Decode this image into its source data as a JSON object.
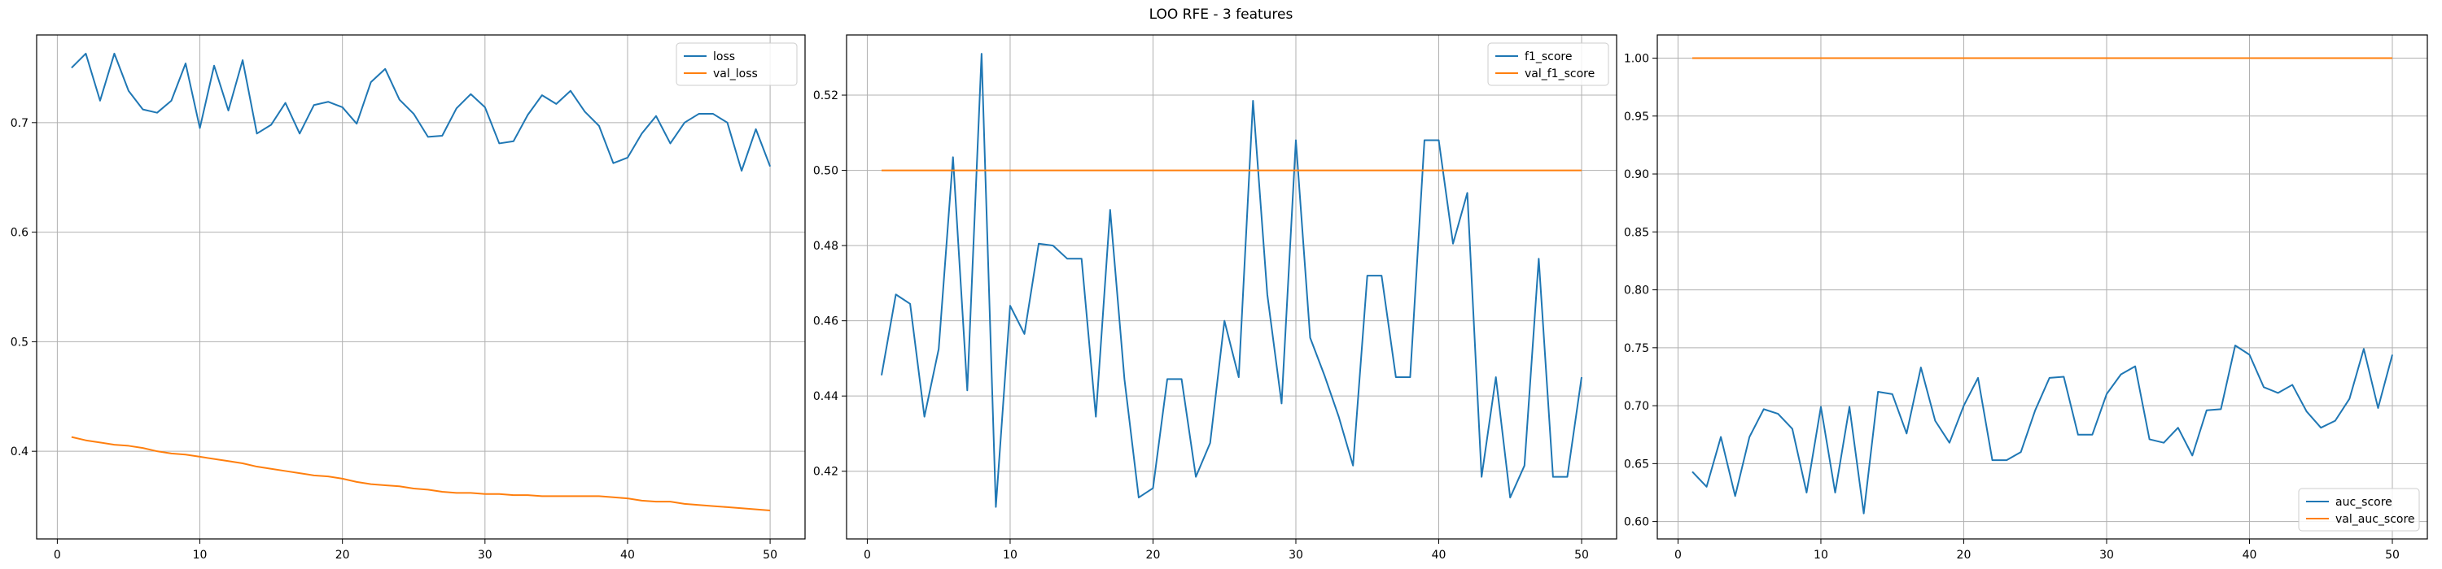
{
  "figure": {
    "title": "LOO RFE - 3 features"
  },
  "chart_data": [
    {
      "type": "line",
      "title": "",
      "xlabel": "",
      "ylabel": "",
      "xlim": [
        -1.45,
        52.45
      ],
      "ylim": [
        0.32,
        0.78
      ],
      "xticks": [
        0,
        10,
        20,
        30,
        40,
        50
      ],
      "yticks": [
        0.4,
        0.5,
        0.6,
        0.7
      ],
      "ytick_labels": [
        "0.4",
        "0.5",
        "0.6",
        "0.7"
      ],
      "grid": true,
      "legend": "top-right",
      "x": [
        1,
        2,
        3,
        4,
        5,
        6,
        7,
        8,
        9,
        10,
        11,
        12,
        13,
        14,
        15,
        16,
        17,
        18,
        19,
        20,
        21,
        22,
        23,
        24,
        25,
        26,
        27,
        28,
        29,
        30,
        31,
        32,
        33,
        34,
        35,
        36,
        37,
        38,
        39,
        40,
        41,
        42,
        43,
        44,
        45,
        46,
        47,
        48,
        49,
        50
      ],
      "series": [
        {
          "name": "loss",
          "color": "#1f77b4",
          "values": [
            0.75,
            0.763,
            0.72,
            0.763,
            0.729,
            0.712,
            0.709,
            0.72,
            0.754,
            0.695,
            0.752,
            0.711,
            0.757,
            0.69,
            0.698,
            0.718,
            0.69,
            0.716,
            0.719,
            0.714,
            0.699,
            0.737,
            0.749,
            0.721,
            0.708,
            0.687,
            0.688,
            0.713,
            0.726,
            0.714,
            0.681,
            0.683,
            0.707,
            0.725,
            0.717,
            0.729,
            0.71,
            0.697,
            0.663,
            0.668,
            0.69,
            0.706,
            0.681,
            0.7,
            0.708,
            0.708,
            0.7,
            0.656,
            0.694,
            0.66
          ]
        },
        {
          "name": "val_loss",
          "color": "#ff7f0e",
          "values": [
            0.413,
            0.41,
            0.408,
            0.406,
            0.405,
            0.403,
            0.4,
            0.398,
            0.397,
            0.395,
            0.393,
            0.391,
            0.389,
            0.386,
            0.384,
            0.382,
            0.38,
            0.378,
            0.377,
            0.375,
            0.372,
            0.37,
            0.369,
            0.368,
            0.366,
            0.365,
            0.363,
            0.362,
            0.362,
            0.361,
            0.361,
            0.36,
            0.36,
            0.359,
            0.359,
            0.359,
            0.359,
            0.359,
            0.358,
            0.357,
            0.355,
            0.354,
            0.354,
            0.352,
            0.351,
            0.35,
            0.349,
            0.348,
            0.347,
            0.346
          ]
        }
      ]
    },
    {
      "type": "line",
      "title": "",
      "xlabel": "",
      "ylabel": "",
      "xlim": [
        -1.45,
        52.45
      ],
      "ylim": [
        0.402,
        0.536
      ],
      "xticks": [
        0,
        10,
        20,
        30,
        40,
        50
      ],
      "yticks": [
        0.42,
        0.44,
        0.46,
        0.48,
        0.5,
        0.52
      ],
      "ytick_labels": [
        "0.42",
        "0.44",
        "0.46",
        "0.48",
        "0.50",
        "0.52"
      ],
      "grid": true,
      "legend": "top-right",
      "x": [
        1,
        2,
        3,
        4,
        5,
        6,
        7,
        8,
        9,
        10,
        11,
        12,
        13,
        14,
        15,
        16,
        17,
        18,
        19,
        20,
        21,
        22,
        23,
        24,
        25,
        26,
        27,
        28,
        29,
        30,
        31,
        32,
        33,
        34,
        35,
        36,
        37,
        38,
        39,
        40,
        41,
        42,
        43,
        44,
        45,
        46,
        47,
        48,
        49,
        50
      ],
      "series": [
        {
          "name": "f1_score",
          "color": "#1f77b4",
          "values": [
            0.4455,
            0.467,
            0.4645,
            0.4345,
            0.4525,
            0.5035,
            0.4415,
            0.531,
            0.4105,
            0.464,
            0.4565,
            0.4805,
            0.48,
            0.4765,
            0.4765,
            0.4345,
            0.4895,
            0.4445,
            0.413,
            0.4155,
            0.4445,
            0.4445,
            0.4185,
            0.4275,
            0.46,
            0.445,
            0.5185,
            0.467,
            0.438,
            0.508,
            0.4555,
            0.4455,
            0.4345,
            0.4215,
            0.472,
            0.472,
            0.445,
            0.445,
            0.508,
            0.508,
            0.4805,
            0.494,
            0.4185,
            0.445,
            0.413,
            0.4215,
            0.4765,
            0.4185,
            0.4185,
            0.445
          ]
        },
        {
          "name": "val_f1_score",
          "color": "#ff7f0e",
          "values": [
            0.5,
            0.5,
            0.5,
            0.5,
            0.5,
            0.5,
            0.5,
            0.5,
            0.5,
            0.5,
            0.5,
            0.5,
            0.5,
            0.5,
            0.5,
            0.5,
            0.5,
            0.5,
            0.5,
            0.5,
            0.5,
            0.5,
            0.5,
            0.5,
            0.5,
            0.5,
            0.5,
            0.5,
            0.5,
            0.5,
            0.5,
            0.5,
            0.5,
            0.5,
            0.5,
            0.5,
            0.5,
            0.5,
            0.5,
            0.5,
            0.5,
            0.5,
            0.5,
            0.5,
            0.5,
            0.5,
            0.5,
            0.5,
            0.5,
            0.5
          ]
        }
      ]
    },
    {
      "type": "line",
      "title": "",
      "xlabel": "",
      "ylabel": "",
      "xlim": [
        -1.45,
        52.45
      ],
      "ylim": [
        0.585,
        1.02
      ],
      "xticks": [
        0,
        10,
        20,
        30,
        40,
        50
      ],
      "yticks": [
        0.6,
        0.65,
        0.7,
        0.75,
        0.8,
        0.85,
        0.9,
        0.95,
        1.0
      ],
      "ytick_labels": [
        "0.60",
        "0.65",
        "0.70",
        "0.75",
        "0.80",
        "0.85",
        "0.90",
        "0.95",
        "1.00"
      ],
      "grid": true,
      "legend": "bottom-right",
      "x": [
        1,
        2,
        3,
        4,
        5,
        6,
        7,
        8,
        9,
        10,
        11,
        12,
        13,
        14,
        15,
        16,
        17,
        18,
        19,
        20,
        21,
        22,
        23,
        24,
        25,
        26,
        27,
        28,
        29,
        30,
        31,
        32,
        33,
        34,
        35,
        36,
        37,
        38,
        39,
        40,
        41,
        42,
        43,
        44,
        45,
        46,
        47,
        48,
        49,
        50
      ],
      "series": [
        {
          "name": "auc_score",
          "color": "#1f77b4",
          "values": [
            0.643,
            0.63,
            0.673,
            0.622,
            0.673,
            0.697,
            0.693,
            0.68,
            0.625,
            0.699,
            0.625,
            0.699,
            0.607,
            0.712,
            0.71,
            0.676,
            0.733,
            0.687,
            0.668,
            0.7,
            0.724,
            0.653,
            0.653,
            0.66,
            0.696,
            0.724,
            0.725,
            0.675,
            0.675,
            0.71,
            0.727,
            0.734,
            0.671,
            0.668,
            0.681,
            0.657,
            0.696,
            0.697,
            0.752,
            0.744,
            0.716,
            0.711,
            0.718,
            0.695,
            0.681,
            0.687,
            0.706,
            0.749,
            0.698,
            0.744
          ]
        },
        {
          "name": "val_auc_score",
          "color": "#ff7f0e",
          "values": [
            1,
            1,
            1,
            1,
            1,
            1,
            1,
            1,
            1,
            1,
            1,
            1,
            1,
            1,
            1,
            1,
            1,
            1,
            1,
            1,
            1,
            1,
            1,
            1,
            1,
            1,
            1,
            1,
            1,
            1,
            1,
            1,
            1,
            1,
            1,
            1,
            1,
            1,
            1,
            1,
            1,
            1,
            1,
            1,
            1,
            1,
            1,
            1,
            1,
            1
          ]
        }
      ]
    }
  ]
}
